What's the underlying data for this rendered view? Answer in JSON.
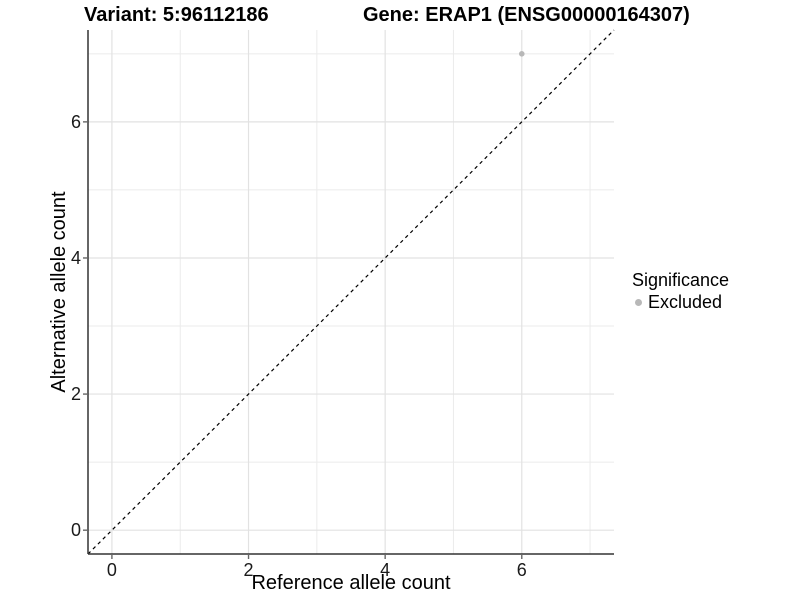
{
  "titles": {
    "variant": "Variant: 5:96112186",
    "gene": "Gene: ERAP1 (ENSG00000164307)"
  },
  "legend": {
    "title": "Significance",
    "items": [
      {
        "label": "Excluded",
        "color": "#b8b8b8"
      }
    ]
  },
  "colors": {
    "background": "#ffffff",
    "grid_major": "#e2e2e2",
    "grid_minor": "#ebebeb",
    "axis_line": "#333333",
    "tick_mark": "#666666",
    "tick_text": "#1a1a1a",
    "point": "#b8b8b8",
    "reference_line": "#000000"
  },
  "chart_data": {
    "type": "scatter",
    "title": "Variant: 5:96112186 — Gene: ERAP1 (ENSG00000164307)",
    "xlabel": "Reference allele count",
    "ylabel": "Alternative allele count",
    "xlim": [
      -0.35,
      7.35
    ],
    "ylim": [
      -0.35,
      7.35
    ],
    "xticks": [
      0,
      2,
      4,
      6
    ],
    "yticks": [
      0,
      2,
      4,
      6
    ],
    "xminor": [
      1,
      3,
      5,
      7
    ],
    "yminor": [
      1,
      3,
      5,
      7
    ],
    "grid": "on",
    "legend_position": "right",
    "series": [
      {
        "name": "Excluded",
        "color": "#b8b8b8",
        "points": [
          {
            "x": 6,
            "y": 7
          }
        ]
      }
    ],
    "reference_line": {
      "equation": "y = x",
      "style": "dashed",
      "x_start": -0.35,
      "y_start": -0.35,
      "x_end": 7.35,
      "y_end": 7.35
    }
  }
}
